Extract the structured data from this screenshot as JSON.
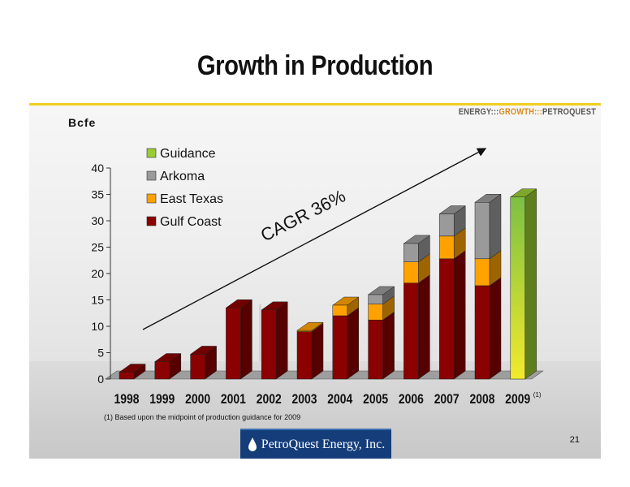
{
  "slide": {
    "title": "Growth in Production",
    "tagline": {
      "part1": "ENERGY:::",
      "part2": "GROWTH:::",
      "part3": "PETROQUEST"
    },
    "unit_label": "Bcfe",
    "footnote": "(1) Based upon the midpoint of production guidance for 2009",
    "page_number": "21",
    "logo_text": "PetroQuest Energy, Inc."
  },
  "colors": {
    "accent_rule": "#f2cf21",
    "Gulf Coast": "#8b0000",
    "East Texas": "#ffa200",
    "Arkoma": "#9a9a9a",
    "Guidance": "#9acd32"
  },
  "chart_data": {
    "type": "bar",
    "stacked": true,
    "three_d": true,
    "categories": [
      "1998",
      "1999",
      "2000",
      "2001",
      "2002",
      "2003",
      "2004",
      "2005",
      "2006",
      "2007",
      "2008",
      "2009"
    ],
    "footnote_marker": {
      "category": "2009",
      "text": "(1)"
    },
    "series": [
      {
        "name": "Gulf Coast",
        "values": [
          1.3,
          3.3,
          4.7,
          13.5,
          13.1,
          9.0,
          12.0,
          11.2,
          18.2,
          22.8,
          17.7,
          0
        ]
      },
      {
        "name": "East Texas",
        "values": [
          0,
          0,
          0,
          0,
          0,
          0.2,
          2.0,
          3.0,
          4.0,
          4.3,
          5.1,
          0
        ]
      },
      {
        "name": "Arkoma",
        "values": [
          0,
          0,
          0,
          0,
          0,
          0,
          0,
          1.8,
          3.5,
          4.2,
          10.7,
          0
        ]
      },
      {
        "name": "Guidance",
        "values": [
          0,
          0,
          0,
          0,
          0,
          0,
          0,
          0,
          0,
          0,
          0,
          34.5
        ]
      }
    ],
    "legend_order": [
      "Guidance",
      "Arkoma",
      "East Texas",
      "Gulf Coast"
    ],
    "legend_position": "top-left",
    "ylabel": "Bcfe",
    "ylim": [
      0,
      40
    ],
    "yticks": [
      0,
      5,
      10,
      15,
      20,
      25,
      30,
      35,
      40
    ],
    "grid": false,
    "annotation": "CAGR 36%"
  }
}
